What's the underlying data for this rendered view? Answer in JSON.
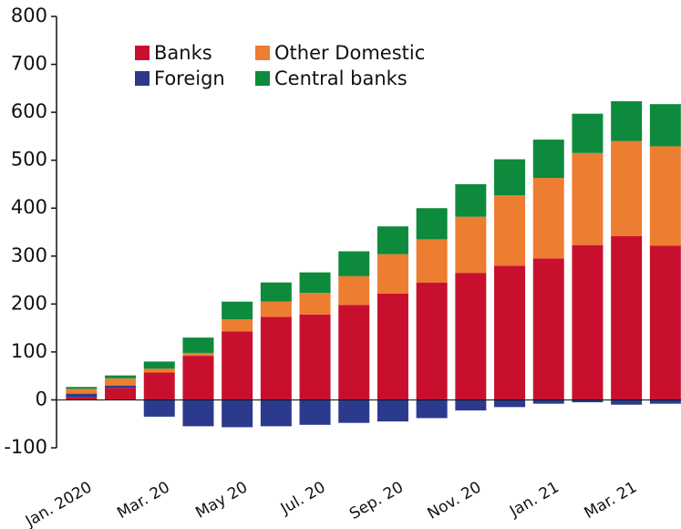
{
  "chart_data": {
    "type": "stacked_bar",
    "categories": [
      "Jan. 2020",
      null,
      "Mar. 20",
      null,
      "May 20",
      null,
      "Jul. 20",
      null,
      "Sep. 20",
      null,
      "Nov. 20",
      null,
      "Jan. 21",
      null,
      "Mar. 21",
      null
    ],
    "series": [
      {
        "name": "Banks",
        "color": "#c8102e",
        "values": [
          5,
          25,
          57,
          92,
          143,
          173,
          178,
          198,
          222,
          245,
          265,
          280,
          295,
          323,
          342,
          322
        ]
      },
      {
        "name": "Foreign",
        "color": "#2b3a8c",
        "values": [
          8,
          5,
          -35,
          -55,
          -57,
          -55,
          -52,
          -48,
          -45,
          -38,
          -22,
          -15,
          -8,
          -5,
          -10,
          -8
        ]
      },
      {
        "name": "Other Domestic",
        "color": "#ed7d31",
        "values": [
          10,
          15,
          8,
          6,
          25,
          32,
          45,
          60,
          82,
          90,
          117,
          147,
          168,
          192,
          198,
          207
        ]
      },
      {
        "name": "Central banks",
        "color": "#0e8a3c",
        "values": [
          4,
          6,
          15,
          32,
          37,
          40,
          43,
          52,
          58,
          65,
          68,
          75,
          80,
          82,
          83,
          88
        ]
      }
    ],
    "ylim": [
      -100,
      800
    ],
    "yticks": [
      -100,
      0,
      100,
      200,
      300,
      400,
      500,
      600,
      700,
      800
    ]
  }
}
